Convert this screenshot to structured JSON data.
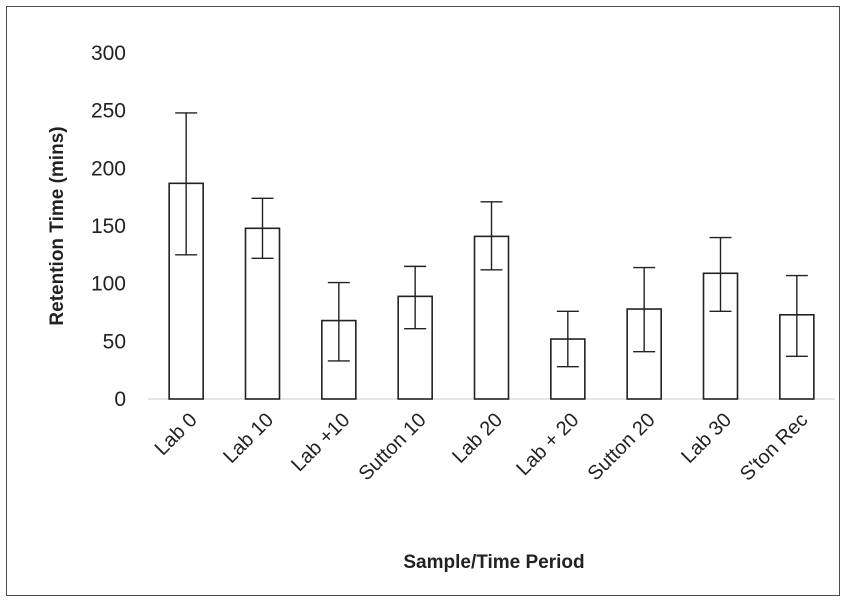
{
  "chart_data": {
    "type": "bar",
    "title": "",
    "xlabel": "Sample/Time Period",
    "ylabel": "Retention Time (mins)",
    "ylim": [
      0,
      300
    ],
    "yticks": [
      0,
      50,
      100,
      150,
      200,
      250,
      300
    ],
    "ytick_labels": [
      "0",
      "50",
      "100",
      "150",
      "200",
      "250",
      "300"
    ],
    "grid": false,
    "legend": "none",
    "categories": [
      "Lab 0",
      "Lab 10",
      "Lab +10",
      "Sutton 10",
      "Lab 20",
      "Lab + 20",
      "Sutton 20",
      "Lab 30",
      "S'ton Rec"
    ],
    "values": [
      187,
      148,
      68,
      89,
      141,
      52,
      78,
      109,
      73
    ],
    "error_bars": [
      {
        "low": 125,
        "high": 248
      },
      {
        "low": 122,
        "high": 174
      },
      {
        "low": 33,
        "high": 101
      },
      {
        "low": 61,
        "high": 115
      },
      {
        "low": 112,
        "high": 171
      },
      {
        "low": 28,
        "high": 76
      },
      {
        "low": 41,
        "high": 114
      },
      {
        "low": 76,
        "high": 140
      },
      {
        "low": 37,
        "high": 107
      }
    ],
    "bar_fill": "#ffffff",
    "bar_stroke": "#222222"
  }
}
